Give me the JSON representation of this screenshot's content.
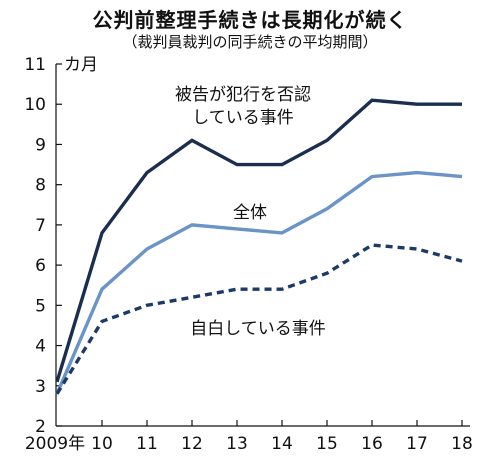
{
  "chart_data": {
    "type": "line",
    "title": "公判前整理手続きは長期化が続く",
    "subtitle": "（裁判員裁判の同手続きの平均期間）",
    "ylabel": "カ月",
    "ylim": [
      2,
      11
    ],
    "yticks": [
      2,
      3,
      4,
      5,
      6,
      7,
      8,
      9,
      10,
      11
    ],
    "x": [
      2009,
      2010,
      2011,
      2012,
      2013,
      2014,
      2015,
      2016,
      2017,
      2018
    ],
    "xtick_labels": [
      "2009年",
      "10",
      "11",
      "12",
      "13",
      "14",
      "15",
      "16",
      "17",
      "18"
    ],
    "grid": false,
    "series": [
      {
        "name": "被告が犯行を否認している事件",
        "name_lines": [
          "被告が犯行を否認",
          "している事件"
        ],
        "values": [
          3.1,
          6.8,
          8.3,
          9.1,
          8.5,
          8.5,
          9.1,
          10.1,
          10.0,
          10.0
        ],
        "color": "#1b2e4f",
        "style": "solid"
      },
      {
        "name": "全体",
        "name_lines": [
          "全体"
        ],
        "values": [
          2.8,
          5.4,
          6.4,
          7.0,
          6.9,
          6.8,
          7.4,
          8.2,
          8.3,
          8.2
        ],
        "color": "#6a93c6",
        "style": "solid"
      },
      {
        "name": "自白している事件",
        "name_lines": [
          "自白している事件"
        ],
        "values": [
          2.8,
          4.6,
          5.0,
          5.2,
          5.4,
          5.4,
          5.8,
          6.5,
          6.4,
          6.1
        ],
        "color": "#1b3a66",
        "style": "dashed"
      }
    ]
  }
}
